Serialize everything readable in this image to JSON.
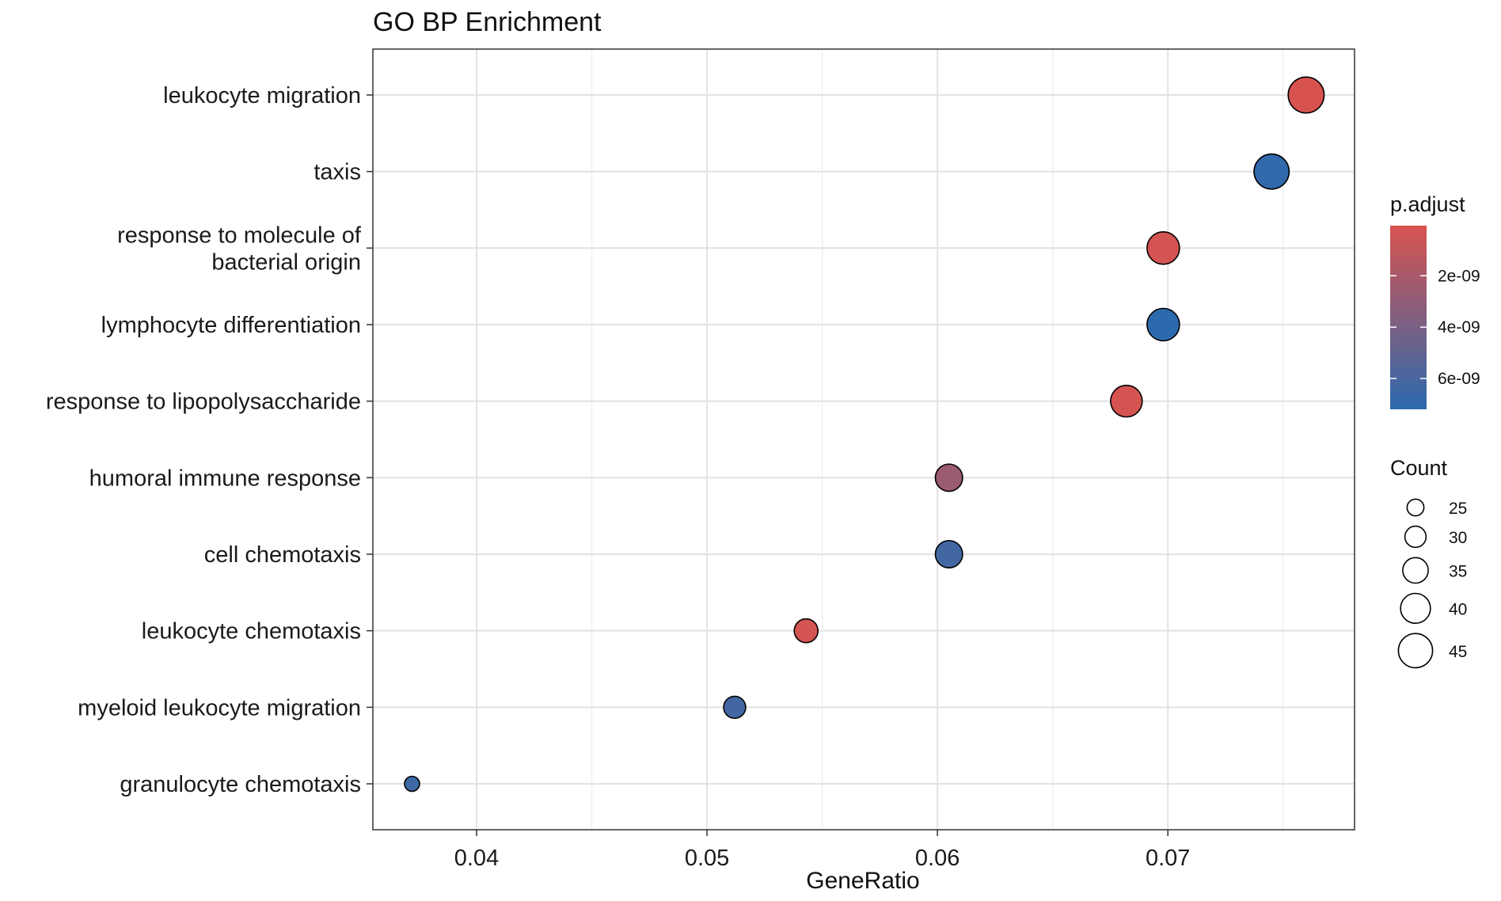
{
  "chart_data": {
    "type": "scatter",
    "title": "GO BP Enrichment",
    "xlabel": "GeneRatio",
    "ylabel": "",
    "xlim": [
      0.0355,
      0.0781
    ],
    "xticks": [
      0.04,
      0.05,
      0.06,
      0.07
    ],
    "xtick_labels": [
      "0.04",
      "0.05",
      "0.06",
      "0.07"
    ],
    "grid": true,
    "categories": [
      "leukocyte migration",
      "taxis",
      "response to molecule of bacterial origin",
      "lymphocyte differentiation",
      "response to lipopolysaccharide",
      "humoral immune response",
      "cell chemotaxis",
      "leukocyte chemotaxis",
      "myeloid leukocyte migration",
      "granulocyte chemotaxis"
    ],
    "category_label_lines": [
      [
        "leukocyte migration"
      ],
      [
        "taxis"
      ],
      [
        "response to molecule of",
        "bacterial origin"
      ],
      [
        "lymphocyte differentiation"
      ],
      [
        "response to lipopolysaccharide"
      ],
      [
        "humoral immune response"
      ],
      [
        "cell chemotaxis"
      ],
      [
        "leukocyte chemotaxis"
      ],
      [
        "myeloid leukocyte migration"
      ],
      [
        "granulocyte chemotaxis"
      ]
    ],
    "points": [
      {
        "term": "leukocyte migration",
        "gene_ratio": 0.076,
        "count": 47,
        "p_adjust": 1e-10
      },
      {
        "term": "taxis",
        "gene_ratio": 0.0745,
        "count": 46,
        "p_adjust": 7e-09
      },
      {
        "term": "response to molecule of bacterial origin",
        "gene_ratio": 0.0698,
        "count": 43,
        "p_adjust": 3e-10
      },
      {
        "term": "lymphocyte differentiation",
        "gene_ratio": 0.0698,
        "count": 43,
        "p_adjust": 7.2e-09
      },
      {
        "term": "response to lipopolysaccharide",
        "gene_ratio": 0.0682,
        "count": 42,
        "p_adjust": 2e-10
      },
      {
        "term": "humoral immune response",
        "gene_ratio": 0.0605,
        "count": 37,
        "p_adjust": 2.6e-09
      },
      {
        "term": "cell chemotaxis",
        "gene_ratio": 0.0605,
        "count": 37,
        "p_adjust": 6.3e-09
      },
      {
        "term": "leukocyte chemotaxis",
        "gene_ratio": 0.0543,
        "count": 33,
        "p_adjust": 3e-10
      },
      {
        "term": "myeloid leukocyte migration",
        "gene_ratio": 0.0512,
        "count": 31,
        "p_adjust": 6.3e-09
      },
      {
        "term": "granulocyte chemotaxis",
        "gene_ratio": 0.0372,
        "count": 23,
        "p_adjust": 6.5e-09
      }
    ],
    "color_legend": {
      "title": "p.adjust",
      "range": [
        5e-11,
        7.2e-09
      ],
      "ticks": [
        2e-09,
        4e-09,
        6e-09
      ],
      "tick_labels": [
        "2e-09",
        "4e-09",
        "6e-09"
      ],
      "low_color": "#D9534F",
      "high_color": "#2C6AAE"
    },
    "size_legend": {
      "title": "Count",
      "values": [
        25,
        30,
        35,
        40,
        45
      ],
      "labels": [
        "25",
        "30",
        "35",
        "40",
        "45"
      ]
    },
    "point_stroke_color": "#000000"
  }
}
